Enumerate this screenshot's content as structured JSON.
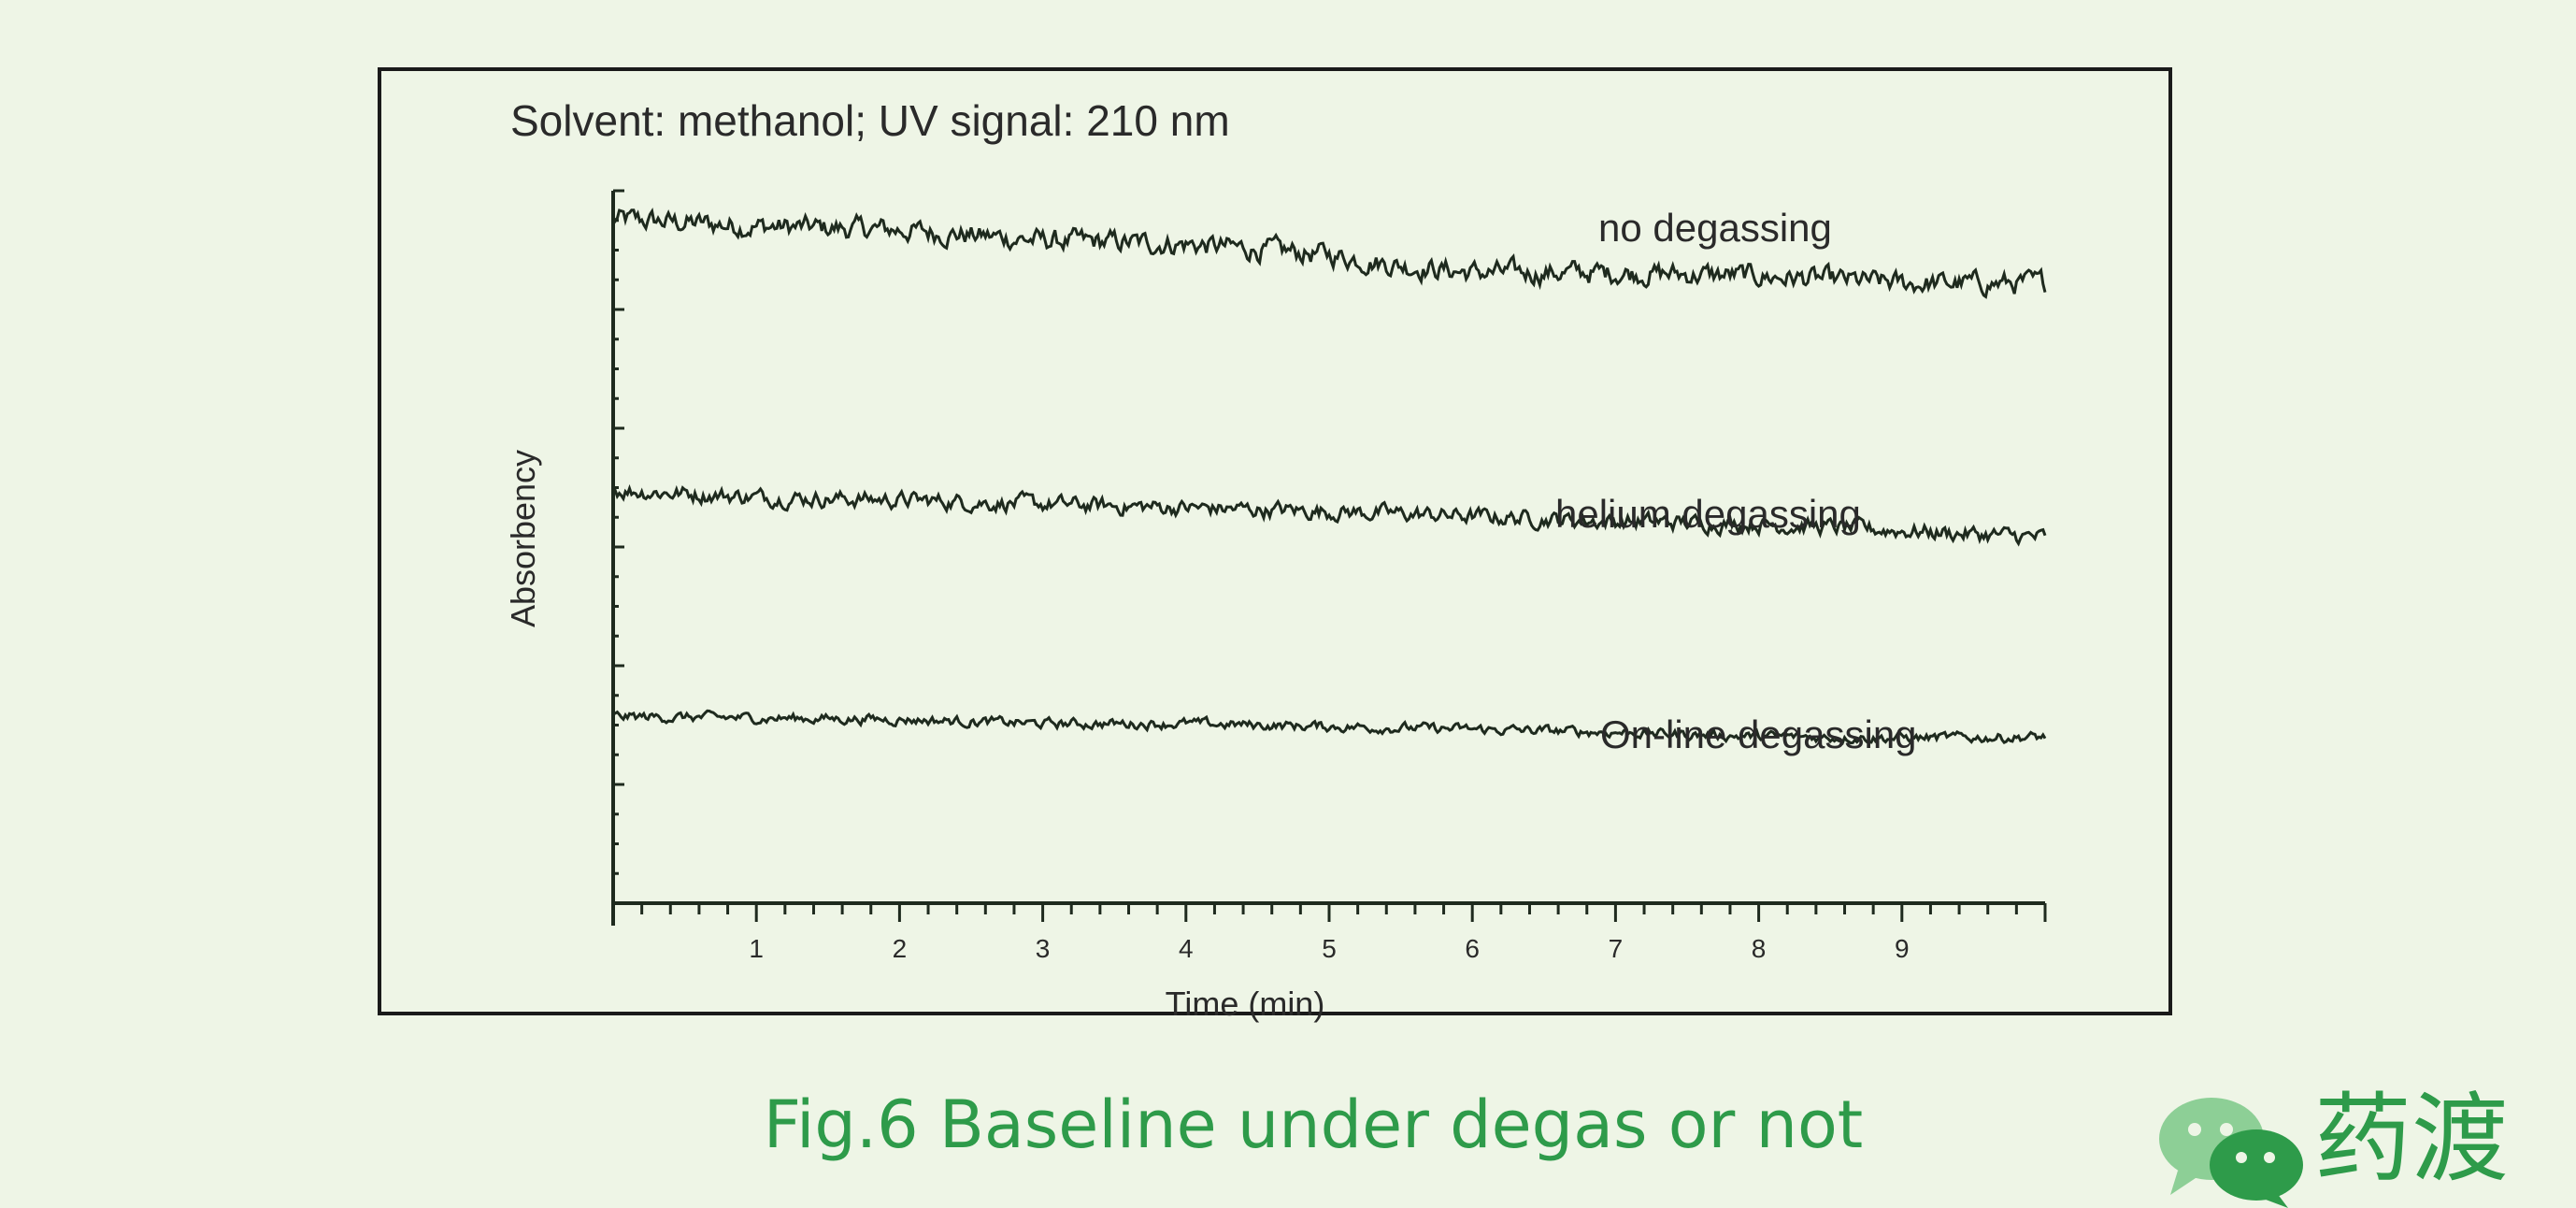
{
  "caption": "Fig.6 Baseline under degas or not",
  "logo": {
    "text": "药渡",
    "icon": "wechat-icon",
    "color": "#2e9b4a"
  },
  "chart_data": {
    "type": "line",
    "title": "Solvent: methanol;  UV  signal: 210 nm",
    "xlabel": "Time  (min)",
    "ylabel": "Absorbency",
    "xlim": [
      0,
      10
    ],
    "x_ticks": [
      "1",
      "2",
      "3",
      "4",
      "5",
      "6",
      "7",
      "8",
      "9"
    ],
    "y_ticks_labeled": false,
    "grid": false,
    "line_color": "#1e2a1e",
    "series": [
      {
        "name": "no degassing",
        "x": [
          0,
          1,
          2,
          3,
          4,
          5,
          5.5,
          6,
          7,
          8,
          9,
          10
        ],
        "y": [
          96,
          95,
          94.5,
          93,
          92.5,
          91,
          89.5,
          88.5,
          88.5,
          88,
          87,
          87
        ]
      },
      {
        "name": "helium degassing",
        "x": [
          0,
          1,
          2,
          3,
          4,
          5,
          6,
          7,
          8,
          9,
          10
        ],
        "y": [
          58,
          57,
          56.6,
          56,
          55.5,
          55,
          54.3,
          53.6,
          53.2,
          52.3,
          51.3
        ]
      },
      {
        "name": "On-line degassing",
        "x": [
          0,
          1,
          2,
          3,
          4,
          5,
          6,
          7,
          8,
          9,
          10
        ],
        "y": [
          26.2,
          26,
          25.8,
          25.2,
          25.2,
          24.8,
          24.4,
          24,
          23.4,
          23.2,
          23.3
        ]
      }
    ]
  }
}
